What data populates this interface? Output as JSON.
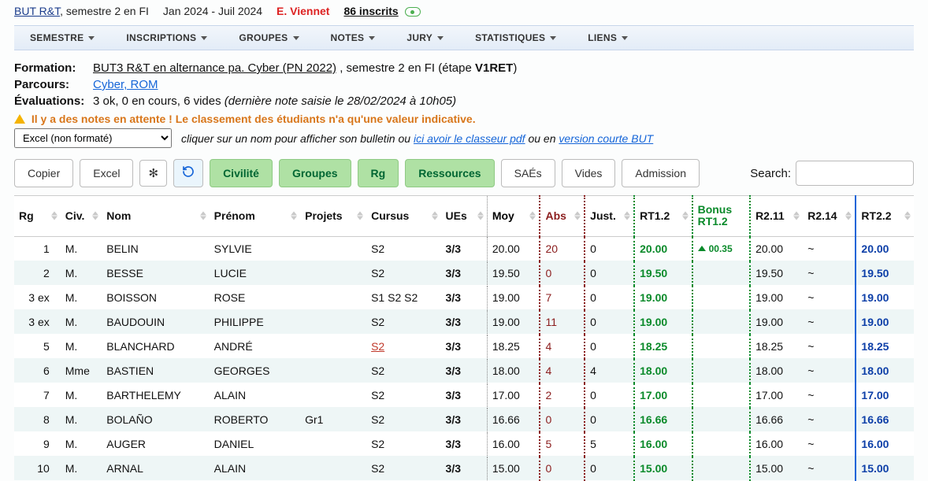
{
  "top": {
    "title_link": "BUT R&T",
    "sem_title": ", semestre 2 en FI",
    "dates": "Jan 2024 - Juil 2024",
    "responsable": "E. Viennet",
    "inscrits": "86 inscrits"
  },
  "menu": {
    "items": [
      "SEMESTRE",
      "INSCRIPTIONS",
      "GROUPES",
      "NOTES",
      "JURY",
      "STATISTIQUES",
      "LIENS"
    ]
  },
  "info": {
    "formation_label": "Formation:",
    "formation_link": "BUT3 R&T en alternance pa. Cyber (PN 2022)",
    "formation_tail_1": " , semestre 2 en FI   (étape ",
    "formation_etape": "V1RET",
    "formation_tail_2": ")",
    "parcours_label": "Parcours:",
    "parcours_link": "Cyber, ROM",
    "evals_label": "Évaluations:",
    "evals_text": "3 ok, 0 en cours, 6 vides ",
    "evals_note": "(dernière note saisie le 28/02/2024 à 10h05)",
    "warning": "Il y a des notes en attente ! Le classement des étudiants n'a qu'une valeur indicative."
  },
  "export": {
    "select_value": "Excel (non formaté)",
    "hint_prefix": "cliquer sur un nom pour afficher son bulletin ou ",
    "pdf_link": "ici avoir le classeur pdf",
    "hint_mid": "  ou en ",
    "short_link": "version courte BUT"
  },
  "toolbar": {
    "copier": "Copier",
    "excel": "Excel",
    "star": "✻",
    "refresh": "↻",
    "toggles": [
      {
        "label": "Civilité",
        "active": true
      },
      {
        "label": "Groupes",
        "active": true
      },
      {
        "label": "Rg",
        "active": true
      },
      {
        "label": "Ressources",
        "active": true
      },
      {
        "label": "SAÉs",
        "active": false
      },
      {
        "label": "Vides",
        "active": false
      },
      {
        "label": "Admission",
        "active": false
      }
    ],
    "search_label": "Search:"
  },
  "table": {
    "columns": {
      "rg": "Rg",
      "civ": "Civ.",
      "nom": "Nom",
      "prenom": "Prénom",
      "projets": "Projets",
      "cursus": "Cursus",
      "ues": "UEs",
      "moy": "Moy",
      "abs": "Abs",
      "just": "Just.",
      "rt12": "RT1.2",
      "bonus": "Bonus RT1.2",
      "r211": "R2.11",
      "r214": "R2.14",
      "rt22": "RT2.2"
    },
    "rows": [
      {
        "rg": "1",
        "civ": "M.",
        "nom": "BELIN",
        "prenom": "SYLVIE",
        "projets": "",
        "cursus": "S2",
        "cursus_red": false,
        "ues": "3/3",
        "moy": "20.00",
        "abs": "20",
        "just": "0",
        "rt12": "20.00",
        "bonus": "00.35",
        "r211": "20.00",
        "r214": "~",
        "rt22": "20.00"
      },
      {
        "rg": "2",
        "civ": "M.",
        "nom": "BESSE",
        "prenom": "LUCIE",
        "projets": "",
        "cursus": "S2",
        "cursus_red": false,
        "ues": "3/3",
        "moy": "19.50",
        "abs": "0",
        "just": "0",
        "rt12": "19.50",
        "bonus": "",
        "r211": "19.50",
        "r214": "~",
        "rt22": "19.50"
      },
      {
        "rg": "3 ex",
        "civ": "M.",
        "nom": "BOISSON",
        "prenom": "ROSE",
        "projets": "",
        "cursus": "S1 S2 S2",
        "cursus_red": false,
        "ues": "3/3",
        "moy": "19.00",
        "abs": "7",
        "just": "0",
        "rt12": "19.00",
        "bonus": "",
        "r211": "19.00",
        "r214": "~",
        "rt22": "19.00"
      },
      {
        "rg": "3 ex",
        "civ": "M.",
        "nom": "BAUDOUIN",
        "prenom": "PHILIPPE",
        "projets": "",
        "cursus": "S2",
        "cursus_red": false,
        "ues": "3/3",
        "moy": "19.00",
        "abs": "11",
        "just": "0",
        "rt12": "19.00",
        "bonus": "",
        "r211": "19.00",
        "r214": "~",
        "rt22": "19.00"
      },
      {
        "rg": "5",
        "civ": "M.",
        "nom": "BLANCHARD",
        "prenom": "ANDRÉ",
        "projets": "",
        "cursus": "S2",
        "cursus_red": true,
        "ues": "3/3",
        "moy": "18.25",
        "abs": "4",
        "just": "0",
        "rt12": "18.25",
        "bonus": "",
        "r211": "18.25",
        "r214": "~",
        "rt22": "18.25"
      },
      {
        "rg": "6",
        "civ": "Mme",
        "nom": "BASTIEN",
        "prenom": "GEORGES",
        "projets": "",
        "cursus": "S2",
        "cursus_red": false,
        "ues": "3/3",
        "moy": "18.00",
        "abs": "4",
        "just": "4",
        "rt12": "18.00",
        "bonus": "",
        "r211": "18.00",
        "r214": "~",
        "rt22": "18.00"
      },
      {
        "rg": "7",
        "civ": "M.",
        "nom": "BARTHELEMY",
        "prenom": "ALAIN",
        "projets": "",
        "cursus": "S2",
        "cursus_red": false,
        "ues": "3/3",
        "moy": "17.00",
        "abs": "2",
        "just": "0",
        "rt12": "17.00",
        "bonus": "",
        "r211": "17.00",
        "r214": "~",
        "rt22": "17.00"
      },
      {
        "rg": "8",
        "civ": "M.",
        "nom": "BOLAÑO",
        "prenom": "ROBERTO",
        "projets": "Gr1",
        "cursus": "S2",
        "cursus_red": false,
        "ues": "3/3",
        "moy": "16.66",
        "abs": "0",
        "just": "0",
        "rt12": "16.66",
        "bonus": "",
        "r211": "16.66",
        "r214": "~",
        "rt22": "16.66"
      },
      {
        "rg": "9",
        "civ": "M.",
        "nom": "AUGER",
        "prenom": "DANIEL",
        "projets": "",
        "cursus": "S2",
        "cursus_red": false,
        "ues": "3/3",
        "moy": "16.00",
        "abs": "5",
        "just": "5",
        "rt12": "16.00",
        "bonus": "",
        "r211": "16.00",
        "r214": "~",
        "rt22": "16.00"
      },
      {
        "rg": "10",
        "civ": "M.",
        "nom": "ARNAL",
        "prenom": "ALAIN",
        "projets": "",
        "cursus": "S2",
        "cursus_red": false,
        "ues": "3/3",
        "moy": "15.00",
        "abs": "0",
        "just": "0",
        "rt12": "15.00",
        "bonus": "",
        "r211": "15.00",
        "r214": "~",
        "rt22": "15.00"
      }
    ]
  }
}
